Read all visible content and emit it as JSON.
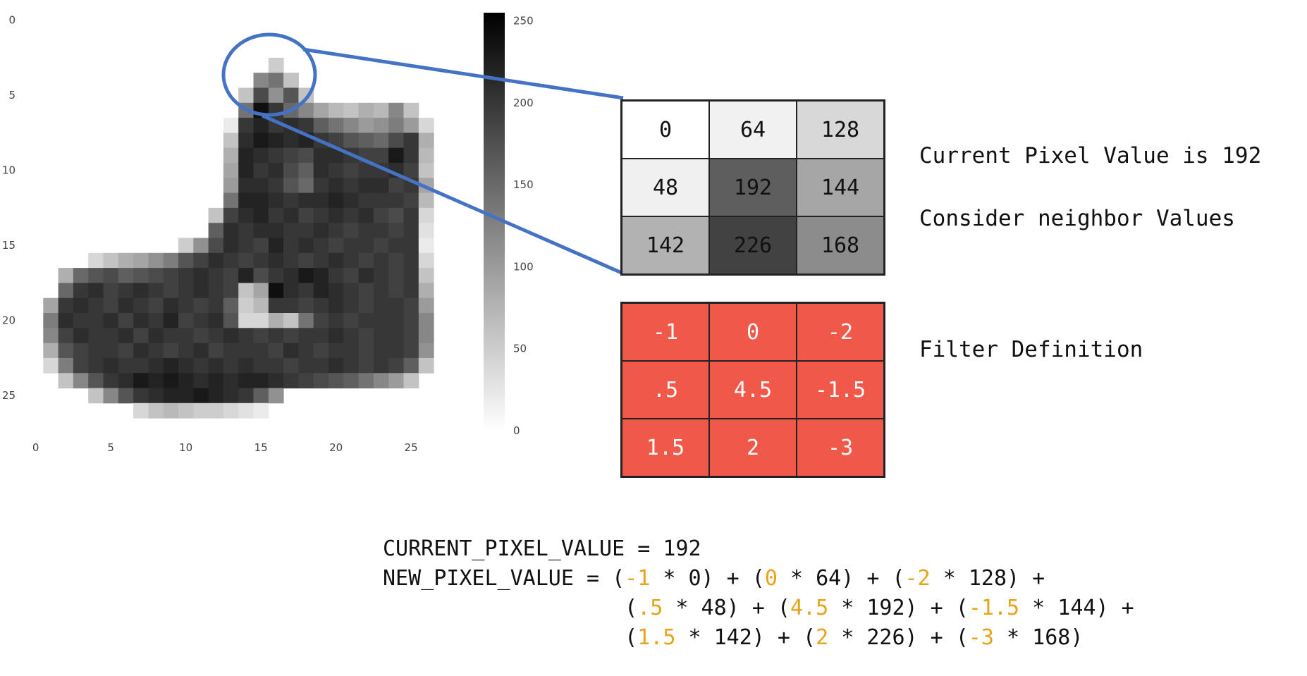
{
  "heatmap": {
    "x_ticks": [
      "0",
      "5",
      "10",
      "15",
      "20",
      "25"
    ],
    "y_ticks": [
      "0",
      "5",
      "10",
      "15",
      "20",
      "25"
    ],
    "colorbar_ticks": [
      "250",
      "200",
      "150",
      "100",
      "50",
      "0"
    ],
    "vmin": 0,
    "vmax": 255,
    "colormap": "white-to-black",
    "rows": [
      [
        0,
        0,
        0,
        0,
        0,
        0,
        0,
        0,
        0,
        0,
        0,
        0,
        0,
        0,
        0,
        0,
        0,
        0,
        0,
        0,
        0,
        0,
        0,
        0,
        0,
        0,
        0,
        0
      ],
      [
        0,
        0,
        0,
        0,
        0,
        0,
        0,
        0,
        0,
        0,
        0,
        0,
        0,
        0,
        0,
        0,
        0,
        0,
        0,
        0,
        0,
        0,
        0,
        0,
        0,
        0,
        0,
        0
      ],
      [
        0,
        0,
        0,
        0,
        0,
        0,
        0,
        0,
        0,
        0,
        0,
        0,
        0,
        0,
        0,
        0,
        0,
        0,
        0,
        0,
        0,
        0,
        0,
        0,
        0,
        0,
        0,
        0
      ],
      [
        0,
        0,
        0,
        0,
        0,
        0,
        0,
        0,
        0,
        0,
        0,
        0,
        0,
        0,
        0,
        0,
        50,
        0,
        0,
        0,
        0,
        0,
        0,
        0,
        0,
        0,
        0,
        0
      ],
      [
        0,
        0,
        0,
        0,
        0,
        0,
        0,
        0,
        0,
        0,
        0,
        0,
        0,
        0,
        0,
        120,
        140,
        60,
        0,
        0,
        0,
        0,
        0,
        0,
        0,
        0,
        0,
        0
      ],
      [
        0,
        0,
        0,
        0,
        0,
        0,
        0,
        0,
        0,
        0,
        0,
        0,
        0,
        0,
        60,
        180,
        110,
        170,
        60,
        0,
        0,
        0,
        0,
        0,
        0,
        0,
        0,
        0
      ],
      [
        0,
        0,
        0,
        0,
        0,
        0,
        0,
        0,
        0,
        0,
        0,
        0,
        0,
        0,
        140,
        240,
        200,
        150,
        120,
        90,
        70,
        60,
        80,
        70,
        120,
        60,
        0,
        0
      ],
      [
        0,
        0,
        0,
        0,
        0,
        0,
        0,
        0,
        0,
        0,
        0,
        0,
        0,
        20,
        200,
        220,
        200,
        210,
        200,
        160,
        140,
        120,
        100,
        110,
        130,
        100,
        40,
        0
      ],
      [
        0,
        0,
        0,
        0,
        0,
        0,
        0,
        0,
        0,
        0,
        0,
        0,
        0,
        60,
        210,
        230,
        220,
        210,
        220,
        200,
        190,
        170,
        160,
        150,
        180,
        200,
        80,
        0
      ],
      [
        0,
        0,
        0,
        0,
        0,
        0,
        0,
        0,
        0,
        0,
        0,
        0,
        0,
        80,
        220,
        210,
        200,
        190,
        180,
        210,
        210,
        200,
        190,
        190,
        230,
        200,
        70,
        0
      ],
      [
        0,
        0,
        0,
        0,
        0,
        0,
        0,
        0,
        0,
        0,
        0,
        0,
        0,
        90,
        220,
        200,
        210,
        180,
        160,
        210,
        200,
        190,
        200,
        200,
        210,
        190,
        60,
        0
      ],
      [
        0,
        0,
        0,
        0,
        0,
        0,
        0,
        0,
        0,
        0,
        0,
        0,
        0,
        100,
        210,
        210,
        200,
        170,
        150,
        200,
        210,
        200,
        210,
        210,
        190,
        200,
        90,
        0
      ],
      [
        0,
        0,
        0,
        0,
        0,
        0,
        0,
        0,
        0,
        0,
        0,
        0,
        0,
        140,
        220,
        220,
        210,
        200,
        210,
        210,
        220,
        210,
        200,
        200,
        200,
        190,
        70,
        0
      ],
      [
        0,
        0,
        0,
        0,
        0,
        0,
        0,
        0,
        0,
        0,
        0,
        0,
        60,
        190,
        210,
        220,
        200,
        210,
        190,
        200,
        210,
        200,
        210,
        190,
        180,
        200,
        40,
        0
      ],
      [
        0,
        0,
        0,
        0,
        0,
        0,
        0,
        0,
        0,
        0,
        0,
        0,
        160,
        210,
        200,
        210,
        210,
        200,
        200,
        210,
        200,
        190,
        200,
        200,
        190,
        200,
        30,
        0
      ],
      [
        0,
        0,
        0,
        0,
        0,
        0,
        0,
        0,
        0,
        0,
        50,
        110,
        180,
        210,
        200,
        190,
        220,
        200,
        210,
        200,
        190,
        200,
        200,
        190,
        200,
        200,
        20,
        0
      ],
      [
        0,
        0,
        0,
        0,
        40,
        60,
        80,
        90,
        110,
        130,
        170,
        190,
        210,
        200,
        190,
        200,
        210,
        200,
        190,
        200,
        210,
        200,
        190,
        200,
        190,
        200,
        40,
        0
      ],
      [
        0,
        0,
        80,
        150,
        170,
        180,
        160,
        170,
        180,
        190,
        200,
        210,
        200,
        190,
        220,
        180,
        200,
        210,
        230,
        220,
        200,
        190,
        210,
        200,
        190,
        200,
        60,
        0
      ],
      [
        0,
        0,
        150,
        200,
        210,
        190,
        200,
        210,
        200,
        190,
        200,
        210,
        200,
        190,
        60,
        90,
        240,
        210,
        200,
        220,
        210,
        200,
        190,
        200,
        190,
        200,
        80,
        0
      ],
      [
        0,
        90,
        200,
        210,
        200,
        190,
        210,
        200,
        190,
        210,
        200,
        190,
        200,
        160,
        50,
        70,
        200,
        200,
        190,
        200,
        210,
        200,
        190,
        200,
        200,
        190,
        100,
        0
      ],
      [
        0,
        130,
        210,
        200,
        200,
        210,
        190,
        210,
        200,
        220,
        190,
        200,
        210,
        170,
        40,
        40,
        80,
        60,
        140,
        190,
        200,
        190,
        200,
        200,
        200,
        190,
        120,
        0
      ],
      [
        0,
        120,
        190,
        210,
        200,
        200,
        210,
        190,
        210,
        200,
        200,
        190,
        200,
        210,
        200,
        190,
        200,
        190,
        200,
        200,
        210,
        200,
        190,
        200,
        200,
        190,
        120,
        0
      ],
      [
        0,
        80,
        170,
        190,
        200,
        200,
        190,
        210,
        200,
        190,
        200,
        210,
        190,
        200,
        200,
        200,
        190,
        210,
        200,
        190,
        200,
        200,
        190,
        200,
        200,
        190,
        110,
        0
      ],
      [
        0,
        40,
        130,
        190,
        200,
        210,
        200,
        200,
        210,
        220,
        210,
        200,
        210,
        200,
        210,
        200,
        200,
        190,
        200,
        200,
        210,
        200,
        190,
        200,
        190,
        160,
        60,
        0
      ],
      [
        0,
        0,
        60,
        120,
        170,
        200,
        210,
        230,
        220,
        230,
        220,
        210,
        220,
        210,
        220,
        220,
        210,
        200,
        190,
        180,
        170,
        160,
        140,
        120,
        100,
        60,
        0,
        0
      ],
      [
        0,
        0,
        0,
        0,
        60,
        120,
        170,
        200,
        210,
        220,
        220,
        230,
        220,
        210,
        200,
        160,
        110,
        0,
        0,
        0,
        0,
        0,
        0,
        0,
        0,
        0,
        0,
        0
      ],
      [
        0,
        0,
        0,
        0,
        0,
        0,
        0,
        40,
        60,
        70,
        60,
        50,
        50,
        40,
        30,
        20,
        0,
        0,
        0,
        0,
        0,
        0,
        0,
        0,
        0,
        0,
        0,
        0
      ],
      [
        0,
        0,
        0,
        0,
        0,
        0,
        0,
        0,
        0,
        0,
        0,
        0,
        0,
        0,
        0,
        0,
        0,
        0,
        0,
        0,
        0,
        0,
        0,
        0,
        0,
        0,
        0,
        0
      ]
    ]
  },
  "highlight_color": "#4472c4",
  "pixel_grid": {
    "cells": [
      [
        "0",
        "64",
        "128"
      ],
      [
        "48",
        "192",
        "144"
      ],
      [
        "142",
        "226",
        "168"
      ]
    ],
    "shades": [
      [
        "#ffffff",
        "#f1f1f1",
        "#d8d8d8"
      ],
      [
        "#f0f0f0",
        "#5e5e5e",
        "#a6a6a6"
      ],
      [
        "#b2b2b2",
        "#424242",
        "#8c8c8c"
      ]
    ],
    "text_colors": [
      [
        "#111111",
        "#111111",
        "#111111"
      ],
      [
        "#111111",
        "#111111",
        "#111111"
      ],
      [
        "#111111",
        "#111111",
        "#111111"
      ]
    ]
  },
  "filter_grid": {
    "cells": [
      [
        "-1",
        "0",
        "-2"
      ],
      [
        ".5",
        "4.5",
        "-1.5"
      ],
      [
        "1.5",
        "2",
        "-3"
      ]
    ],
    "fill": "#f0594a"
  },
  "labels": {
    "current": "Current Pixel Value is 192",
    "neighbor": "Consider neighbor Values",
    "filter": "Filter Definition"
  },
  "formula": {
    "line1": "CURRENT_PIXEL_VALUE = 192",
    "line2": {
      "prefix": "NEW_PIXEL_VALUE = (",
      "w1": "-1",
      "t1": " * 0) + (",
      "w2": "0",
      "t2": " * 64) + (",
      "w3": "-2",
      "t3": " * 128) +"
    },
    "line3": {
      "prefix": "                   (",
      "w1": ".5",
      "t1": " * 48) + (",
      "w2": "4.5",
      "t2": " * 192) + (",
      "w3": "-1.5",
      "t3": " * 144) +"
    },
    "line4": {
      "prefix": "                   (",
      "w1": "1.5",
      "t1": " * 142) + (",
      "w2": "2",
      "t2": " * 226) + (",
      "w3": "-3",
      "t3": " * 168)"
    },
    "weight_color": "#e8a317"
  }
}
